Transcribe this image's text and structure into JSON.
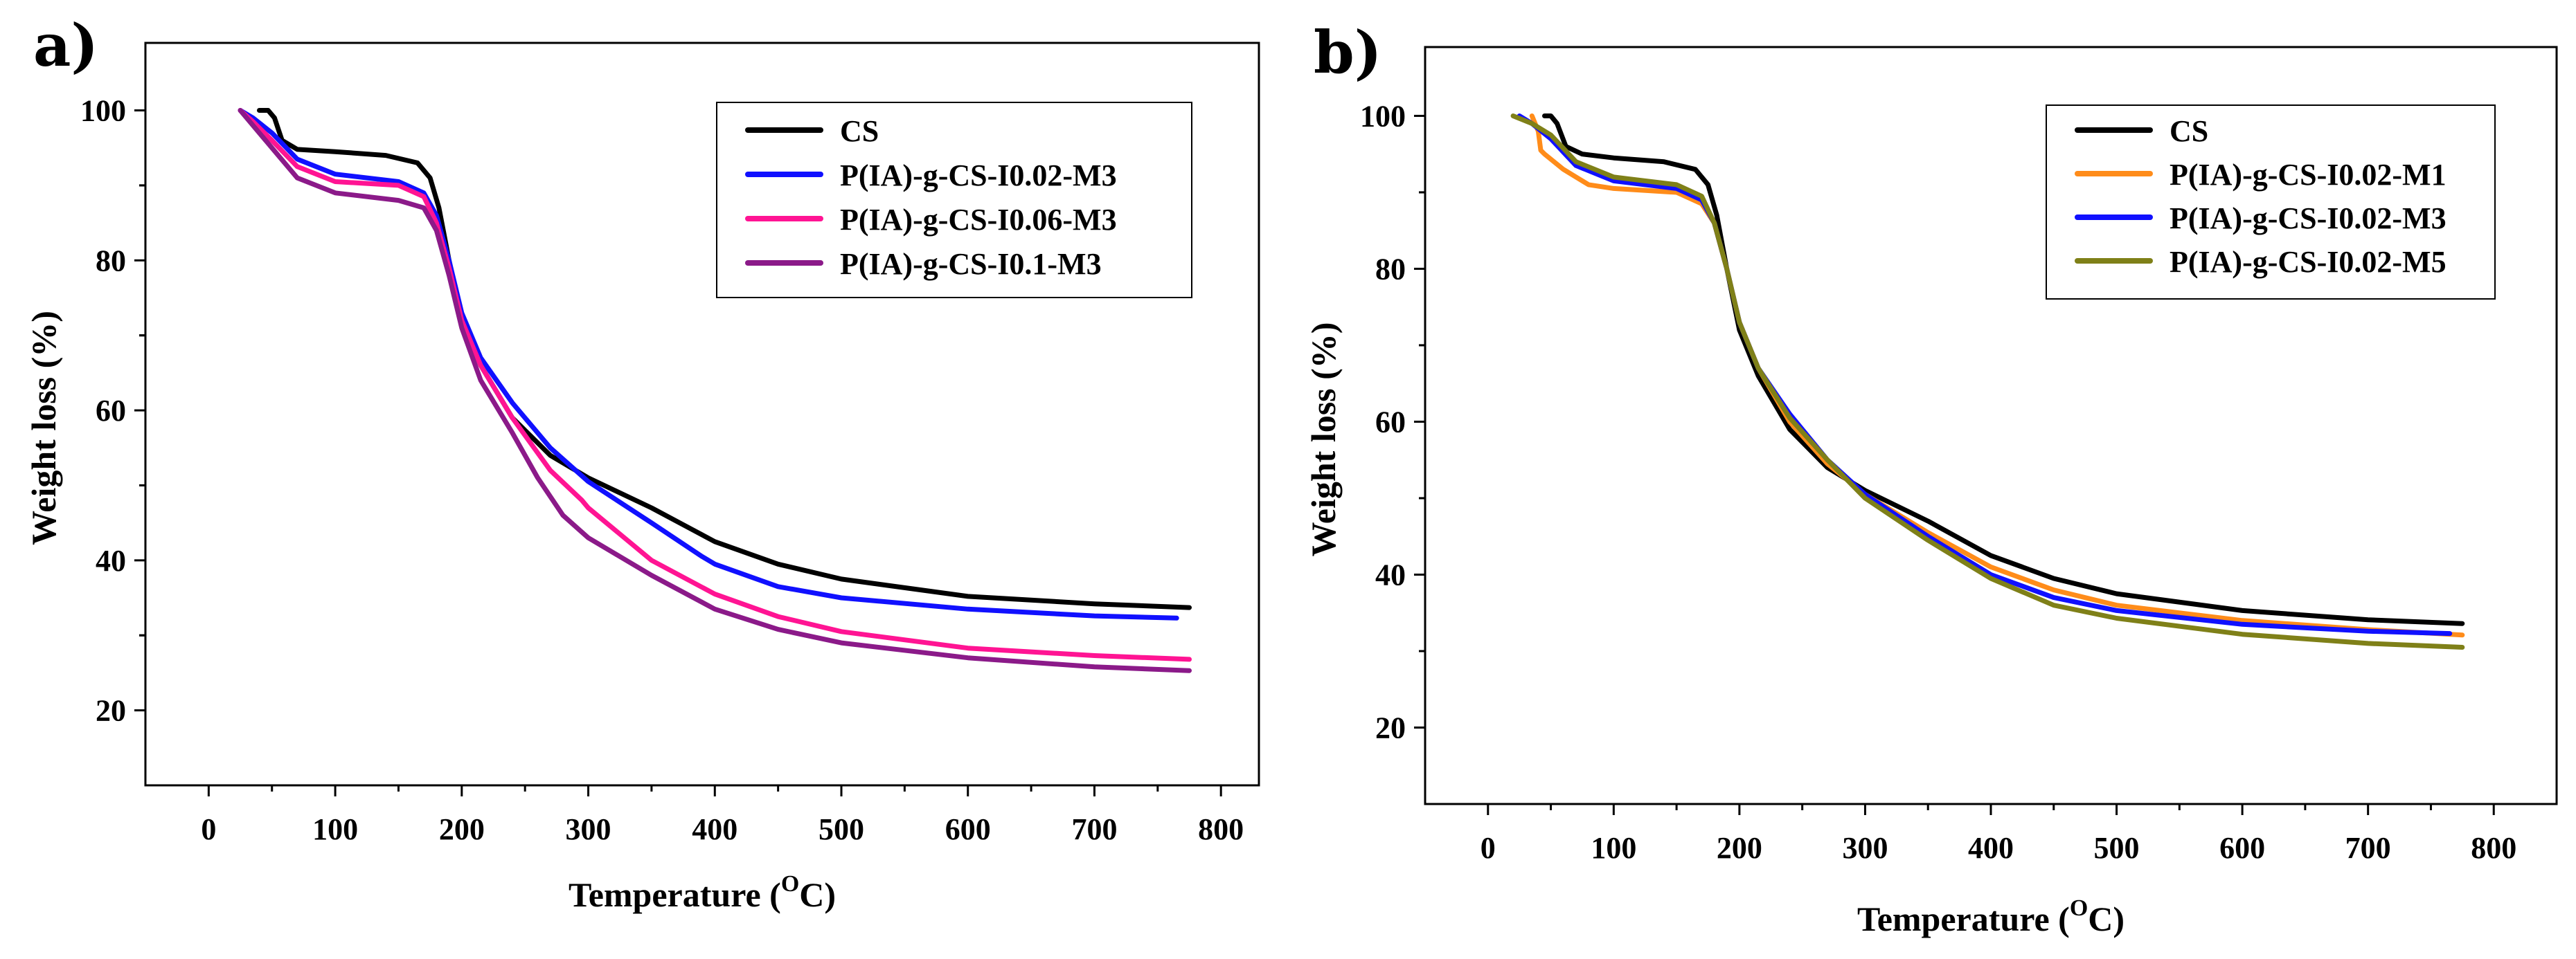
{
  "chart_data": [
    {
      "panel_label": "a)",
      "type": "line",
      "xlabel": "Temperature (",
      "xlabel_sup": "O",
      "xlabel_suffix": "C)",
      "ylabel": "Weight loss (%)",
      "xlim": [
        -50,
        830
      ],
      "ylim": [
        10,
        109
      ],
      "x_ticks": [
        0,
        100,
        200,
        300,
        400,
        500,
        600,
        700,
        800
      ],
      "y_ticks": [
        20,
        40,
        60,
        80,
        100
      ],
      "legend_position": "top-right",
      "series": [
        {
          "name": "CS",
          "color": "#000000",
          "x": [
            40,
            47,
            52,
            58,
            70,
            100,
            140,
            165,
            175,
            182,
            190,
            200,
            215,
            240,
            270,
            300,
            350,
            400,
            450,
            500,
            600,
            700,
            775
          ],
          "y": [
            100,
            100,
            99,
            96,
            94.8,
            94.5,
            94.0,
            93.0,
            91,
            87,
            80,
            72,
            66,
            59,
            54,
            51,
            47,
            42.5,
            39.5,
            37.5,
            35.2,
            34.2,
            33.7
          ]
        },
        {
          "name": "P(IA)-g-CS-I0.02-M3",
          "color": "#1010ff",
          "x": [
            25,
            35,
            50,
            70,
            100,
            150,
            170,
            180,
            190,
            200,
            215,
            240,
            270,
            300,
            350,
            390,
            400,
            450,
            500,
            600,
            700,
            765
          ],
          "y": [
            100,
            99,
            97,
            93.5,
            91.5,
            90.5,
            89,
            86,
            80,
            73,
            67,
            61,
            55,
            50.5,
            45,
            40.5,
            39.5,
            36.5,
            35,
            33.5,
            32.6,
            32.3
          ]
        },
        {
          "name": "P(IA)-g-CS-I0.06-M3",
          "color": "#ff1493",
          "x": [
            25,
            35,
            50,
            70,
            100,
            150,
            170,
            180,
            190,
            200,
            215,
            240,
            270,
            295,
            300,
            350,
            400,
            450,
            500,
            600,
            700,
            775
          ],
          "y": [
            100,
            98.5,
            96,
            92.5,
            90.5,
            90,
            88.5,
            85,
            79,
            72,
            66,
            59,
            52,
            48,
            47,
            40,
            35.5,
            32.5,
            30.5,
            28.3,
            27.3,
            26.8
          ]
        },
        {
          "name": "P(IA)-g-CS-I0.1-M3",
          "color": "#8b1a89",
          "x": [
            25,
            35,
            50,
            70,
            100,
            150,
            170,
            180,
            190,
            200,
            215,
            240,
            260,
            280,
            300,
            350,
            400,
            450,
            500,
            600,
            700,
            775
          ],
          "y": [
            100,
            98,
            95,
            91,
            89,
            88,
            87,
            84,
            78,
            71,
            64,
            57,
            51,
            46,
            43,
            38,
            33.5,
            30.8,
            29,
            27,
            25.8,
            25.3
          ]
        }
      ]
    },
    {
      "panel_label": "b)",
      "type": "line",
      "xlabel": "Temperature (",
      "xlabel_sup": "O",
      "xlabel_suffix": "C)",
      "ylabel": "Weight loss (%)",
      "xlim": [
        -50,
        850
      ],
      "ylim": [
        10,
        109
      ],
      "x_ticks": [
        0,
        100,
        200,
        300,
        400,
        500,
        600,
        700,
        800
      ],
      "y_ticks": [
        20,
        40,
        60,
        80,
        100
      ],
      "legend_position": "top-right",
      "series": [
        {
          "name": "CS",
          "color": "#000000",
          "x": [
            45,
            50,
            55,
            62,
            75,
            100,
            140,
            165,
            175,
            182,
            190,
            200,
            215,
            240,
            270,
            300,
            350,
            400,
            450,
            500,
            600,
            700,
            775
          ],
          "y": [
            100,
            100,
            99,
            96,
            95,
            94.5,
            94,
            93,
            91,
            87,
            80,
            72,
            66,
            59,
            54,
            51,
            47,
            42.5,
            39.5,
            37.5,
            35.3,
            34.1,
            33.6
          ]
        },
        {
          "name": "P(IA)-g-CS-I0.02-M1",
          "color": "#ff8c1a",
          "x": [
            35,
            40,
            42,
            45,
            60,
            80,
            100,
            150,
            170,
            180,
            190,
            200,
            215,
            240,
            270,
            300,
            350,
            400,
            450,
            500,
            600,
            700,
            775
          ],
          "y": [
            100,
            98,
            95.5,
            95,
            93,
            91,
            90.5,
            90,
            88.5,
            86,
            80,
            73,
            67,
            60,
            54.5,
            50.5,
            45.5,
            41,
            38,
            36,
            34,
            32.8,
            32.1
          ]
        },
        {
          "name": "P(IA)-g-CS-I0.02-M3",
          "color": "#1010ff",
          "x": [
            25,
            35,
            50,
            70,
            100,
            150,
            170,
            180,
            190,
            200,
            215,
            240,
            270,
            300,
            350,
            400,
            450,
            500,
            600,
            700,
            765
          ],
          "y": [
            100,
            99,
            97,
            93.5,
            91.5,
            90.5,
            89,
            86,
            80,
            73,
            67,
            61,
            55,
            50.5,
            45,
            40,
            37,
            35.3,
            33.5,
            32.6,
            32.3
          ]
        },
        {
          "name": "P(IA)-g-CS-I0.02-M5",
          "color": "#7f8018",
          "x": [
            20,
            35,
            50,
            70,
            100,
            150,
            170,
            180,
            190,
            200,
            215,
            240,
            270,
            300,
            350,
            400,
            450,
            500,
            600,
            700,
            775
          ],
          "y": [
            100,
            99,
            97.5,
            94,
            92,
            91,
            89.5,
            86,
            80,
            73,
            67,
            60.5,
            55,
            50,
            44.5,
            39.5,
            36,
            34.3,
            32.2,
            31,
            30.5
          ]
        }
      ]
    }
  ]
}
